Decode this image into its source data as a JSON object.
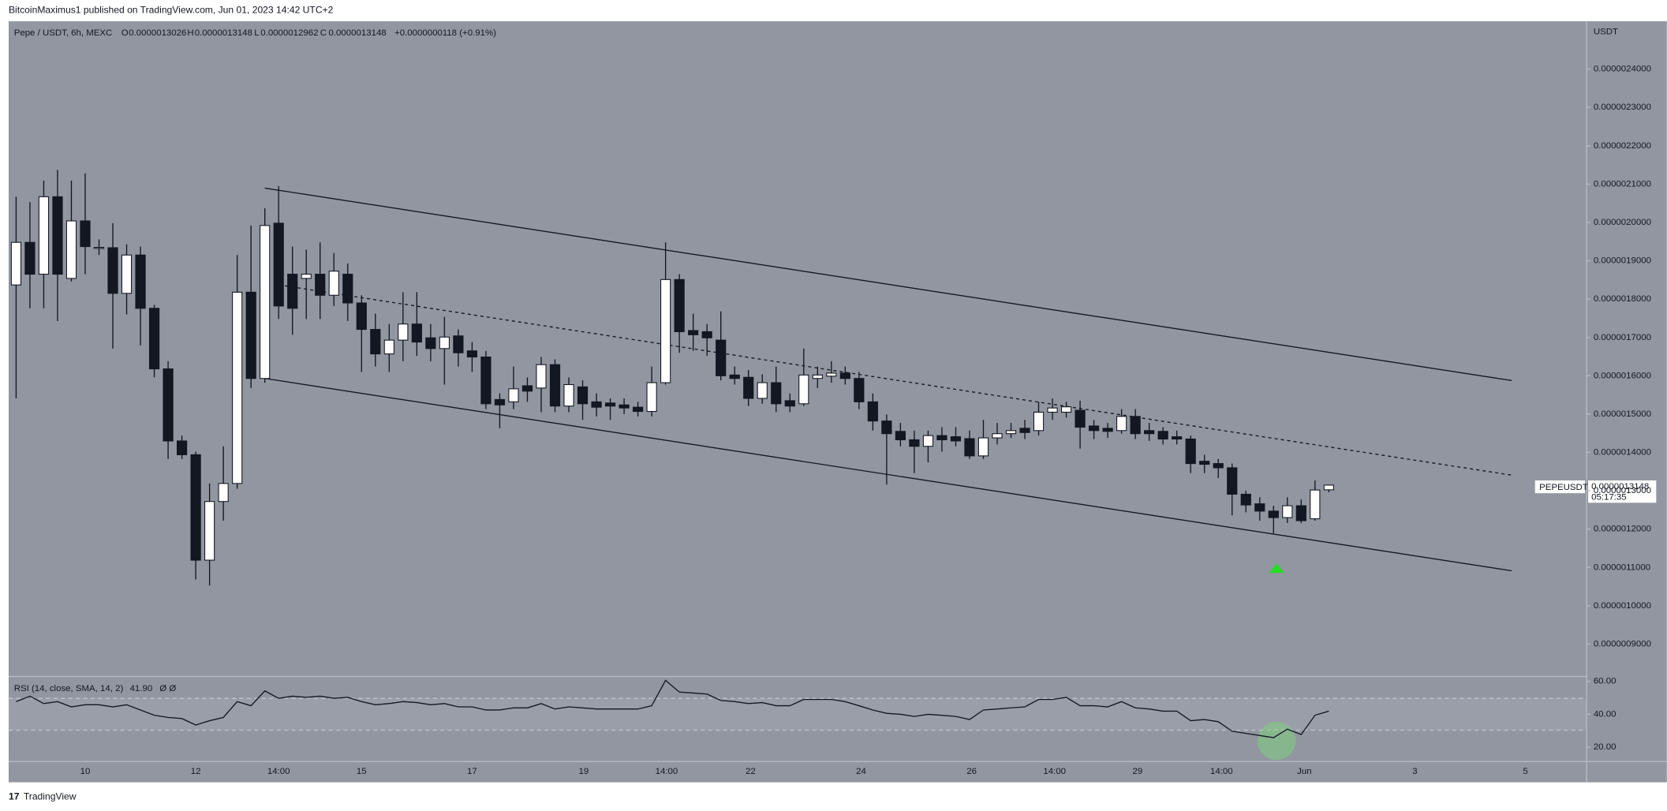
{
  "header": {
    "publisher": "BitcoinMaximus1 published on TradingView.com, Jun 01, 2023 14:42 UTC+2"
  },
  "footer": {
    "brand": "TradingView"
  },
  "chart_data": {
    "type": "candlestick",
    "title": "Pepe / USDT, 6h, MEXC",
    "ohlc_letters": [
      "O",
      "H",
      "L",
      "C"
    ],
    "change": "+0.0000000118 (+0.91%)",
    "axis_label": "USDT",
    "symbol": "PEPEUSDT",
    "countdown": "05:17:35",
    "xticks": [
      "10",
      "12",
      "14:00",
      "15",
      "17",
      "19",
      "14:00",
      "22",
      "24",
      "26",
      "14:00",
      "29",
      "14:00",
      "Jun",
      "3",
      "5"
    ],
    "ylim": [
      8.168e-07,
      2.5248e-06
    ],
    "yticks": [
      {
        "value": 2.4e-06,
        "label": "0.0000024000"
      },
      {
        "value": 2.3e-06,
        "label": "0.0000023000"
      },
      {
        "value": 2.2e-06,
        "label": "0.0000022000"
      },
      {
        "value": 2.1e-06,
        "label": "0.0000021000"
      },
      {
        "value": 2e-06,
        "label": "0.0000020000"
      },
      {
        "value": 1.9e-06,
        "label": "0.0000019000"
      },
      {
        "value": 1.8e-06,
        "label": "0.0000018000"
      },
      {
        "value": 1.7e-06,
        "label": "0.0000017000"
      },
      {
        "value": 1.6e-06,
        "label": "0.0000016000"
      },
      {
        "value": 1.5e-06,
        "label": "0.0000015000"
      },
      {
        "value": 1.4e-06,
        "label": "0.0000014000"
      },
      {
        "value": 1.3e-06,
        "label": "0.0000013000"
      },
      {
        "value": 1.2e-06,
        "label": "0.0000012000"
      },
      {
        "value": 1.1e-06,
        "label": "0.0000011000"
      },
      {
        "value": 1e-06,
        "label": "0.0000010000"
      },
      {
        "value": 9e-07,
        "label": "0.0000009000"
      }
    ],
    "up_color": "#ffffff",
    "down_color": "#131722",
    "open": [
      1.837e-06,
      1.948e-06,
      1.865e-06,
      2.067e-06,
      1.854e-06,
      2.004e-06,
      1.934e-06,
      1.934e-06,
      1.815e-06,
      1.915e-06,
      1.776e-06,
      1.618e-06,
      1.43e-06,
      1.394e-06,
      1.119e-06,
      1.272e-06,
      1.319e-06,
      1.818e-06,
      1.593e-06,
      1.998e-06,
      1.865e-06,
      1.854e-06,
      1.865e-06,
      1.81e-06,
      1.865e-06,
      1.79e-06,
      1.721e-06,
      1.657e-06,
      1.693e-06,
      1.735e-06,
      1.699e-06,
      1.671e-06,
      1.704e-06,
      1.665e-06,
      1.649e-06,
      1.538e-06,
      1.532e-06,
      1.574e-06,
      1.568e-06,
      1.629e-06,
      1.521e-06,
      1.571e-06,
      1.532e-06,
      1.529e-06,
      1.524e-06,
      1.518e-06,
      1.507e-06,
      1.582e-06,
      1.851e-06,
      1.718e-06,
      1.715e-06,
      1.693e-06,
      1.602e-06,
      1.596e-06,
      1.541e-06,
      1.582e-06,
      1.535e-06,
      1.527e-06,
      1.593e-06,
      1.599e-06,
      1.607e-06,
      1.593e-06,
      1.532e-06,
      1.482e-06,
      1.455e-06,
      1.433e-06,
      1.416e-06,
      1.444e-06,
      1.441e-06,
      1.436e-06,
      1.391e-06,
      1.438e-06,
      1.449e-06,
      1.463e-06,
      1.457e-06,
      1.505e-06,
      1.505e-06,
      1.51e-06,
      1.469e-06,
      1.463e-06,
      1.457e-06,
      1.494e-06,
      1.457e-06,
      1.455e-06,
      1.441e-06,
      1.435e-06,
      1.377e-06,
      1.371e-06,
      1.36e-06,
      1.291e-06,
      1.266e-06,
      1.247e-06,
      1.23e-06,
      1.261e-06,
      1.227e-06,
      1.3026e-06
    ],
    "high": [
      2.067e-06,
      2.053e-06,
      2.109e-06,
      2.137e-06,
      2.109e-06,
      2.128e-06,
      1.956e-06,
      1.998e-06,
      1.943e-06,
      1.937e-06,
      1.785e-06,
      1.638e-06,
      1.444e-06,
      1.402e-06,
      1.319e-06,
      1.416e-06,
      1.915e-06,
      1.992e-06,
      2.037e-06,
      2.095e-06,
      1.937e-06,
      1.929e-06,
      1.948e-06,
      1.92e-06,
      1.893e-06,
      1.81e-06,
      1.762e-06,
      1.735e-06,
      1.818e-06,
      1.818e-06,
      1.735e-06,
      1.754e-06,
      1.721e-06,
      1.688e-06,
      1.665e-06,
      1.554e-06,
      1.624e-06,
      1.596e-06,
      1.649e-06,
      1.643e-06,
      1.596e-06,
      1.588e-06,
      1.554e-06,
      1.541e-06,
      1.541e-06,
      1.532e-06,
      1.624e-06,
      1.948e-06,
      1.865e-06,
      1.762e-06,
      1.735e-06,
      1.768e-06,
      1.624e-06,
      1.615e-06,
      1.604e-06,
      1.624e-06,
      1.554e-06,
      1.671e-06,
      1.624e-06,
      1.638e-06,
      1.624e-06,
      1.61e-06,
      1.554e-06,
      1.499e-06,
      1.477e-06,
      1.457e-06,
      1.457e-06,
      1.466e-06,
      1.466e-06,
      1.457e-06,
      1.485e-06,
      1.477e-06,
      1.477e-06,
      1.485e-06,
      1.532e-06,
      1.541e-06,
      1.532e-06,
      1.535e-06,
      1.485e-06,
      1.477e-06,
      1.513e-06,
      1.513e-06,
      1.477e-06,
      1.466e-06,
      1.457e-06,
      1.444e-06,
      1.394e-06,
      1.383e-06,
      1.371e-06,
      1.3e-06,
      1.283e-06,
      1.261e-06,
      1.283e-06,
      1.277e-06,
      1.327e-06,
      1.3148e-06
    ],
    "low": [
      1.541e-06,
      1.776e-06,
      1.776e-06,
      1.743e-06,
      1.846e-06,
      1.865e-06,
      1.915e-06,
      1.671e-06,
      1.76e-06,
      1.679e-06,
      1.596e-06,
      1.383e-06,
      1.383e-06,
      1.069e-06,
      1.053e-06,
      1.222e-06,
      1.305e-06,
      1.568e-06,
      1.582e-06,
      1.748e-06,
      1.707e-06,
      1.748e-06,
      1.748e-06,
      1.782e-06,
      1.743e-06,
      1.61e-06,
      1.624e-06,
      1.61e-06,
      1.638e-06,
      1.652e-06,
      1.638e-06,
      1.577e-06,
      1.624e-06,
      1.61e-06,
      1.513e-06,
      1.463e-06,
      1.513e-06,
      1.532e-06,
      1.505e-06,
      1.505e-06,
      1.505e-06,
      1.485e-06,
      1.494e-06,
      1.485e-06,
      1.5e-06,
      1.494e-06,
      1.494e-06,
      1.577e-06,
      1.66e-06,
      1.665e-06,
      1.652e-06,
      1.588e-06,
      1.577e-06,
      1.521e-06,
      1.527e-06,
      1.505e-06,
      1.505e-06,
      1.521e-06,
      1.568e-06,
      1.582e-06,
      1.577e-06,
      1.513e-06,
      1.457e-06,
      1.316e-06,
      1.416e-06,
      1.346e-06,
      1.374e-06,
      1.402e-06,
      1.416e-06,
      1.383e-06,
      1.383e-06,
      1.421e-06,
      1.438e-06,
      1.435e-06,
      1.444e-06,
      1.485e-06,
      1.491e-06,
      1.41e-06,
      1.435e-06,
      1.438e-06,
      1.449e-06,
      1.435e-06,
      1.43e-06,
      1.421e-06,
      1.421e-06,
      1.346e-06,
      1.346e-06,
      1.333e-06,
      1.236e-06,
      1.244e-06,
      1.222e-06,
      1.189e-06,
      1.216e-06,
      1.216e-06,
      1.222e-06,
      1.2962e-06
    ],
    "close": [
      1.948e-06,
      1.865e-06,
      2.067e-06,
      1.865e-06,
      2.004e-06,
      1.937e-06,
      1.935e-06,
      1.815e-06,
      1.915e-06,
      1.776e-06,
      1.618e-06,
      1.43e-06,
      1.394e-06,
      1.119e-06,
      1.272e-06,
      1.319e-06,
      1.818e-06,
      1.593e-06,
      1.992e-06,
      1.782e-06,
      1.776e-06,
      1.865e-06,
      1.81e-06,
      1.873e-06,
      1.79e-06,
      1.721e-06,
      1.657e-06,
      1.693e-06,
      1.735e-06,
      1.688e-06,
      1.671e-06,
      1.701e-06,
      1.66e-06,
      1.649e-06,
      1.527e-06,
      1.524e-06,
      1.566e-06,
      1.56e-06,
      1.629e-06,
      1.521e-06,
      1.577e-06,
      1.527e-06,
      1.518e-06,
      1.521e-06,
      1.516e-06,
      1.507e-06,
      1.582e-06,
      1.851e-06,
      1.715e-06,
      1.707e-06,
      1.699e-06,
      1.6e-06,
      1.593e-06,
      1.541e-06,
      1.582e-06,
      1.527e-06,
      1.521e-06,
      1.602e-06,
      1.602e-06,
      1.607e-06,
      1.593e-06,
      1.532e-06,
      1.482e-06,
      1.449e-06,
      1.433e-06,
      1.416e-06,
      1.444e-06,
      1.433e-06,
      1.43e-06,
      1.391e-06,
      1.438e-06,
      1.449e-06,
      1.457e-06,
      1.452e-06,
      1.505e-06,
      1.516e-06,
      1.519e-06,
      1.466e-06,
      1.457e-06,
      1.455e-06,
      1.494e-06,
      1.449e-06,
      1.449e-06,
      1.435e-06,
      1.435e-06,
      1.371e-06,
      1.369e-06,
      1.36e-06,
      1.291e-06,
      1.263e-06,
      1.247e-06,
      1.23e-06,
      1.261e-06,
      1.222e-06,
      1.302e-06,
      1.3148e-06
    ],
    "rsi": {
      "name": "RSI (14, close, SMA, 14, 2)",
      "value_label": "41.90",
      "extra": "Ø Ø",
      "ylim": [
        11.6,
        62.6
      ],
      "yticks": [
        {
          "value": 60,
          "label": "60.00"
        },
        {
          "value": 40,
          "label": "40.00"
        },
        {
          "value": 20,
          "label": "20.00"
        }
      ],
      "values": [
        47.7,
        51.0,
        46.5,
        47.7,
        44.5,
        45.8,
        45.8,
        44.5,
        45.8,
        42.6,
        39.4,
        38.1,
        37.4,
        33.5,
        36.1,
        38.1,
        47.7,
        45.2,
        54.2,
        49.7,
        51.0,
        50.3,
        51.0,
        49.7,
        50.3,
        47.7,
        45.8,
        46.5,
        47.7,
        47.1,
        45.8,
        46.5,
        44.5,
        44.5,
        42.6,
        42.6,
        43.9,
        43.9,
        46.5,
        43.2,
        44.5,
        43.9,
        43.2,
        43.2,
        43.2,
        43.2,
        45.2,
        60.6,
        53.5,
        52.9,
        52.3,
        48.4,
        47.7,
        46.5,
        47.1,
        45.2,
        45.2,
        49.0,
        49.0,
        49.0,
        47.7,
        45.2,
        42.6,
        40.6,
        40.0,
        38.7,
        40.0,
        39.4,
        38.7,
        36.8,
        42.6,
        43.2,
        43.9,
        44.5,
        49.0,
        49.0,
        50.3,
        45.2,
        45.2,
        44.5,
        47.7,
        43.9,
        43.2,
        41.9,
        41.9,
        36.1,
        36.8,
        35.5,
        29.7,
        28.4,
        27.1,
        25.8,
        31.0,
        27.7,
        39.4,
        41.9
      ]
    }
  }
}
